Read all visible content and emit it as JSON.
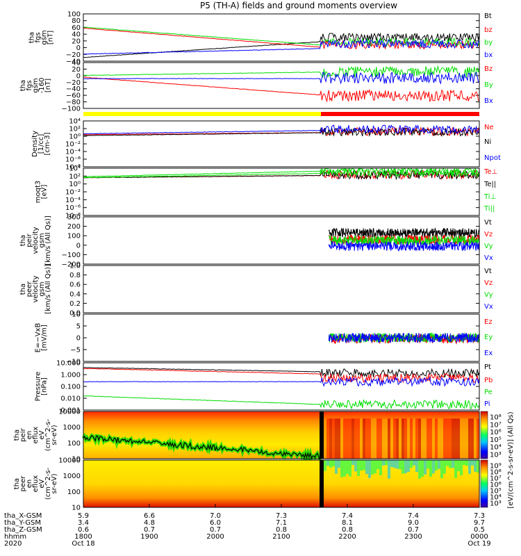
{
  "title": "P5 (TH-A) fields and ground moments overview",
  "colors": {
    "black": "#000000",
    "red": "#ff0000",
    "green": "#00dd00",
    "blue": "#0000ff",
    "yellow": "#ffff00"
  },
  "chart_data": [
    {
      "type": "line",
      "ylabel": [
        "tha",
        "fgs",
        "gsm",
        "[nT]"
      ],
      "ylim": [
        -40,
        100
      ],
      "yticks": [
        "100",
        "80",
        "60",
        "40",
        "20",
        "0",
        "−20",
        "−40"
      ],
      "legend": [
        {
          "name": "Bt",
          "color": "#000000"
        },
        {
          "name": "bz",
          "color": "#ff0000"
        },
        {
          "name": "by",
          "color": "#00dd00"
        },
        {
          "name": "bx",
          "color": "#0000ff"
        }
      ]
    },
    {
      "type": "line",
      "ylabel": [
        "tha",
        "fgs",
        "gsm",
        "-160",
        "[nT]"
      ],
      "ylim": [
        -100,
        40
      ],
      "yticks": [
        "40",
        "20",
        "0",
        "−20",
        "−40",
        "−60",
        "−80",
        "−100"
      ],
      "legend": [
        {
          "name": "Bz",
          "color": "#ff0000"
        },
        {
          "name": "By",
          "color": "#00dd00"
        },
        {
          "name": "Bx",
          "color": "#0000ff"
        }
      ]
    },
    {
      "type": "line",
      "ylabel": [
        "Density",
        "[1/cc]",
        "[cm-3]"
      ],
      "yscale": "log",
      "yticks": [
        "10⁴",
        "10²",
        "10⁰",
        "10⁻²",
        "10⁻⁴",
        "10⁻⁶",
        "10⁻⁸"
      ],
      "legend": [
        {
          "name": "Ne",
          "color": "#ff0000"
        },
        {
          "name": "Ni",
          "color": "#000000"
        },
        {
          "name": "Npot",
          "color": "#0000ff"
        }
      ]
    },
    {
      "type": "line",
      "ylabel": [
        "moqt3",
        "[eV]"
      ],
      "yscale": "log",
      "yticks": [
        "10⁴",
        "10²",
        "10⁰",
        "10⁻²",
        "10⁻⁴",
        "10⁻⁶",
        "10⁻⁸"
      ],
      "legend": [
        {
          "name": "Te⊥",
          "color": "#ff0000"
        },
        {
          "name": "Te||",
          "color": "#000000"
        },
        {
          "name": "Ti⊥",
          "color": "#00dd00"
        },
        {
          "name": "Ti||",
          "color": "#00dd00"
        }
      ]
    },
    {
      "type": "line",
      "ylabel": [
        "tha",
        "peir",
        "velocity",
        "gsm",
        "[km/s (All Qs)]"
      ],
      "ylim": [
        -200,
        300
      ],
      "yticks": [
        "300",
        "200",
        "100",
        "0",
        "−100",
        "−200"
      ],
      "legend": [
        {
          "name": "Vt",
          "color": "#000000"
        },
        {
          "name": "Vz",
          "color": "#ff0000"
        },
        {
          "name": "Vy",
          "color": "#00dd00"
        },
        {
          "name": "Vx",
          "color": "#0000ff"
        }
      ]
    },
    {
      "type": "line",
      "ylabel": [
        "tha",
        "peer",
        "velocity",
        "gsm",
        "[km/s (All Qs)]"
      ],
      "ylim": [
        0,
        1
      ],
      "yticks": [
        "1.0",
        "0.8",
        "0.6",
        "0.4",
        "0.2",
        "0.0"
      ],
      "legend": [
        {
          "name": "Vt",
          "color": "#000000"
        },
        {
          "name": "Vz",
          "color": "#ff0000"
        },
        {
          "name": "Vy",
          "color": "#00dd00"
        },
        {
          "name": "Vx",
          "color": "#0000ff"
        }
      ]
    },
    {
      "type": "line",
      "ylabel": [
        "E=−VxB",
        "[mV/m]"
      ],
      "ylim": [
        -10,
        10
      ],
      "yticks": [
        "10",
        "5",
        "0",
        "−5",
        "−10"
      ],
      "legend": [
        {
          "name": "Ez",
          "color": "#ff0000"
        },
        {
          "name": "Ey",
          "color": "#00dd00"
        },
        {
          "name": "Ex",
          "color": "#0000ff"
        }
      ]
    },
    {
      "type": "line",
      "ylabel": [
        "Pressure",
        "[nPa]"
      ],
      "yscale": "log",
      "yticks": [
        "10.000",
        "1.000",
        "0.100",
        "0.010",
        "0.001"
      ],
      "legend": [
        {
          "name": "Pt",
          "color": "#000000"
        },
        {
          "name": "Pb",
          "color": "#ff0000"
        },
        {
          "name": "Pe",
          "color": "#00dd00"
        },
        {
          "name": "Pi",
          "color": "#0000ff"
        }
      ]
    },
    {
      "type": "heatmap",
      "ylabel": [
        "tha",
        "peir",
        "en",
        "eflux",
        "eV",
        "(cm^2-s-",
        "sr-eV)"
      ],
      "yscale": "log",
      "yticks": [
        "10000",
        "1000",
        "100",
        "10"
      ],
      "colorbar": {
        "label": "[eV/(cm^2-s-sr-eV)] (All Qs)",
        "ticks": [
          "10⁸",
          "10⁷",
          "10⁶",
          "10⁵",
          "10⁴",
          "10³"
        ]
      }
    },
    {
      "type": "heatmap",
      "ylabel": [
        "tha",
        "peer",
        "en",
        "eflux",
        "eV",
        "(cm^2-s-",
        "sr-eV)"
      ],
      "yscale": "log",
      "yticks": [
        "10000",
        "1000",
        "100",
        "10"
      ],
      "colorbar": {
        "label": "[eV/(cm^2-s-sr-eV)] (All Qs)",
        "ticks": [
          "10⁹",
          "10⁸",
          "10⁷",
          "10⁶",
          "10⁵",
          "10⁴",
          "10³"
        ]
      }
    }
  ],
  "ephemeris": {
    "rows": [
      {
        "label": "tha_X-GSM",
        "values": [
          "5.9",
          "6.6",
          "7.0",
          "7.3",
          "7.4",
          "7.4",
          "7.3"
        ]
      },
      {
        "label": "tha_Y-GSM",
        "values": [
          "3.4",
          "4.8",
          "6.0",
          "7.1",
          "8.1",
          "9.0",
          "9.7"
        ]
      },
      {
        "label": "tha_Z-GSM",
        "values": [
          "0.6",
          "0.7",
          "0.7",
          "0.8",
          "0.8",
          "0.7",
          "0.5"
        ]
      },
      {
        "label": "hhmm",
        "values": [
          "1800",
          "1900",
          "2000",
          "2100",
          "2200",
          "2300",
          "0000"
        ]
      },
      {
        "label": "2020",
        "values": [
          "Oct 18",
          "",
          "",
          "",
          "",
          "",
          "Oct 19"
        ]
      }
    ]
  }
}
